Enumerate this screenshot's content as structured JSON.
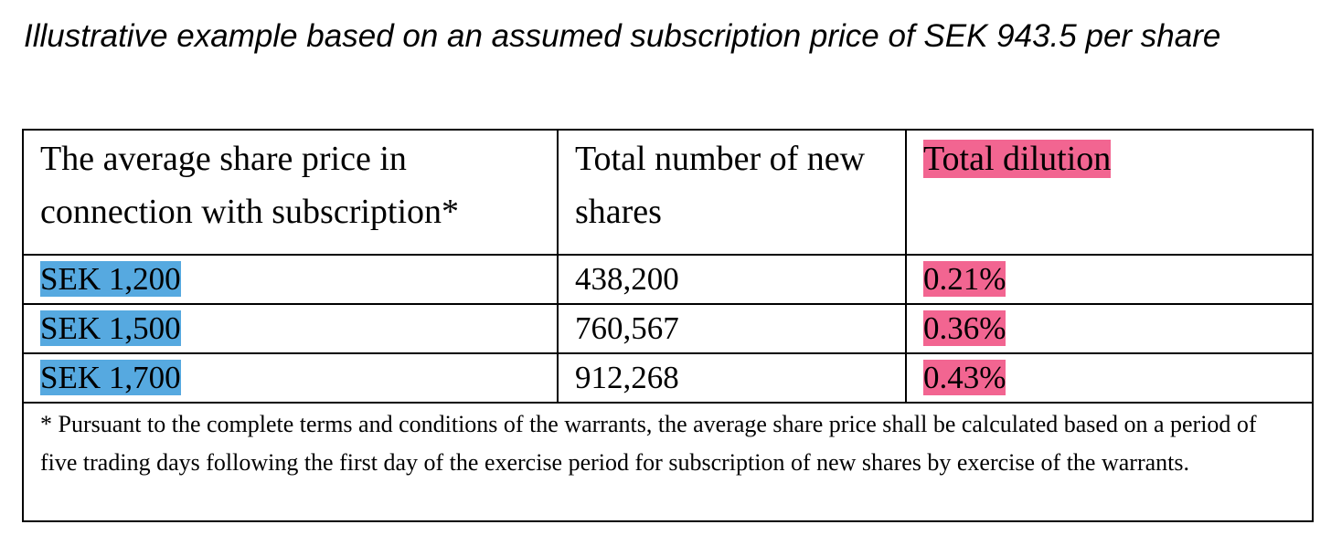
{
  "heading": {
    "text": "Illustrative example based on an assumed subscription price of SEK 943.5 per share"
  },
  "table": {
    "columns": [
      "The average share price in connection with subscription*",
      "Total number of new shares",
      "Total dilution"
    ],
    "rows": [
      {
        "price": "SEK 1,200",
        "shares": "438,200",
        "dilution": "0.21%"
      },
      {
        "price": "SEK 1,500",
        "shares": "760,567",
        "dilution": "0.36%"
      },
      {
        "price": "SEK 1,700",
        "shares": "912,268",
        "dilution": "0.43%"
      }
    ],
    "footnote": "* Pursuant to the complete terms and conditions of the warrants, the average share price shall be calculated based on a period of five trading days following the first day of the exercise period for subscription of new shares by exercise of the warrants."
  },
  "colors": {
    "price_highlight": "#56a9e0",
    "dilution_highlight": "#f26591"
  }
}
